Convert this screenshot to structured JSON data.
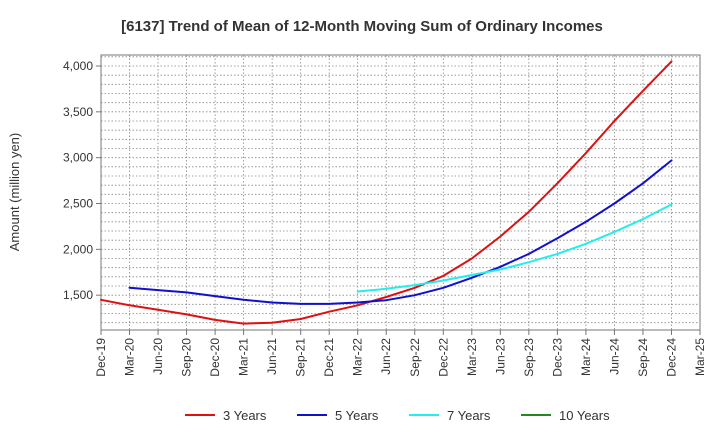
{
  "chart_data": {
    "type": "line",
    "title": "[6137]  Trend of Mean of 12-Month Moving Sum of Ordinary Incomes",
    "xlabel": "",
    "ylabel": "Amount (million yen)",
    "ylim": [
      1120,
      4120
    ],
    "yticks": [
      1500,
      2000,
      2500,
      3000,
      3500,
      4000
    ],
    "ytick_labels": [
      "1,500",
      "2,000",
      "2,500",
      "3,000",
      "3,500",
      "4,000"
    ],
    "categories": [
      "Dec-19",
      "Mar-20",
      "Jun-20",
      "Sep-20",
      "Dec-20",
      "Mar-21",
      "Jun-21",
      "Sep-21",
      "Dec-21",
      "Mar-22",
      "Jun-22",
      "Sep-22",
      "Dec-22",
      "Mar-23",
      "Jun-23",
      "Sep-23",
      "Dec-23",
      "Mar-24",
      "Jun-24",
      "Sep-24",
      "Dec-24",
      "Mar-25"
    ],
    "grid": true,
    "legend_position": "bottom",
    "series": [
      {
        "name": "3 Years",
        "color": "#dd1111",
        "values": [
          1450,
          1390,
          1340,
          1290,
          1230,
          1190,
          1200,
          1240,
          1320,
          1390,
          1480,
          1580,
          1710,
          1900,
          2140,
          2410,
          2720,
          3050,
          3400,
          3730,
          4050,
          null
        ]
      },
      {
        "name": "5 Years",
        "color": "#1111cc",
        "values": [
          null,
          1580,
          1555,
          1530,
          1490,
          1450,
          1420,
          1405,
          1405,
          1420,
          1445,
          1500,
          1580,
          1690,
          1810,
          1950,
          2120,
          2300,
          2500,
          2720,
          2970,
          null
        ]
      },
      {
        "name": "7 Years",
        "color": "#22eeee",
        "values": [
          null,
          null,
          null,
          null,
          null,
          null,
          null,
          null,
          null,
          1540,
          1570,
          1610,
          1660,
          1720,
          1780,
          1860,
          1950,
          2060,
          2190,
          2330,
          2490,
          null
        ]
      },
      {
        "name": "10 Years",
        "color": "#228822",
        "values": [
          null,
          null,
          null,
          null,
          null,
          null,
          null,
          null,
          null,
          null,
          null,
          null,
          null,
          null,
          null,
          null,
          null,
          null,
          null,
          null,
          null,
          null
        ]
      }
    ]
  }
}
